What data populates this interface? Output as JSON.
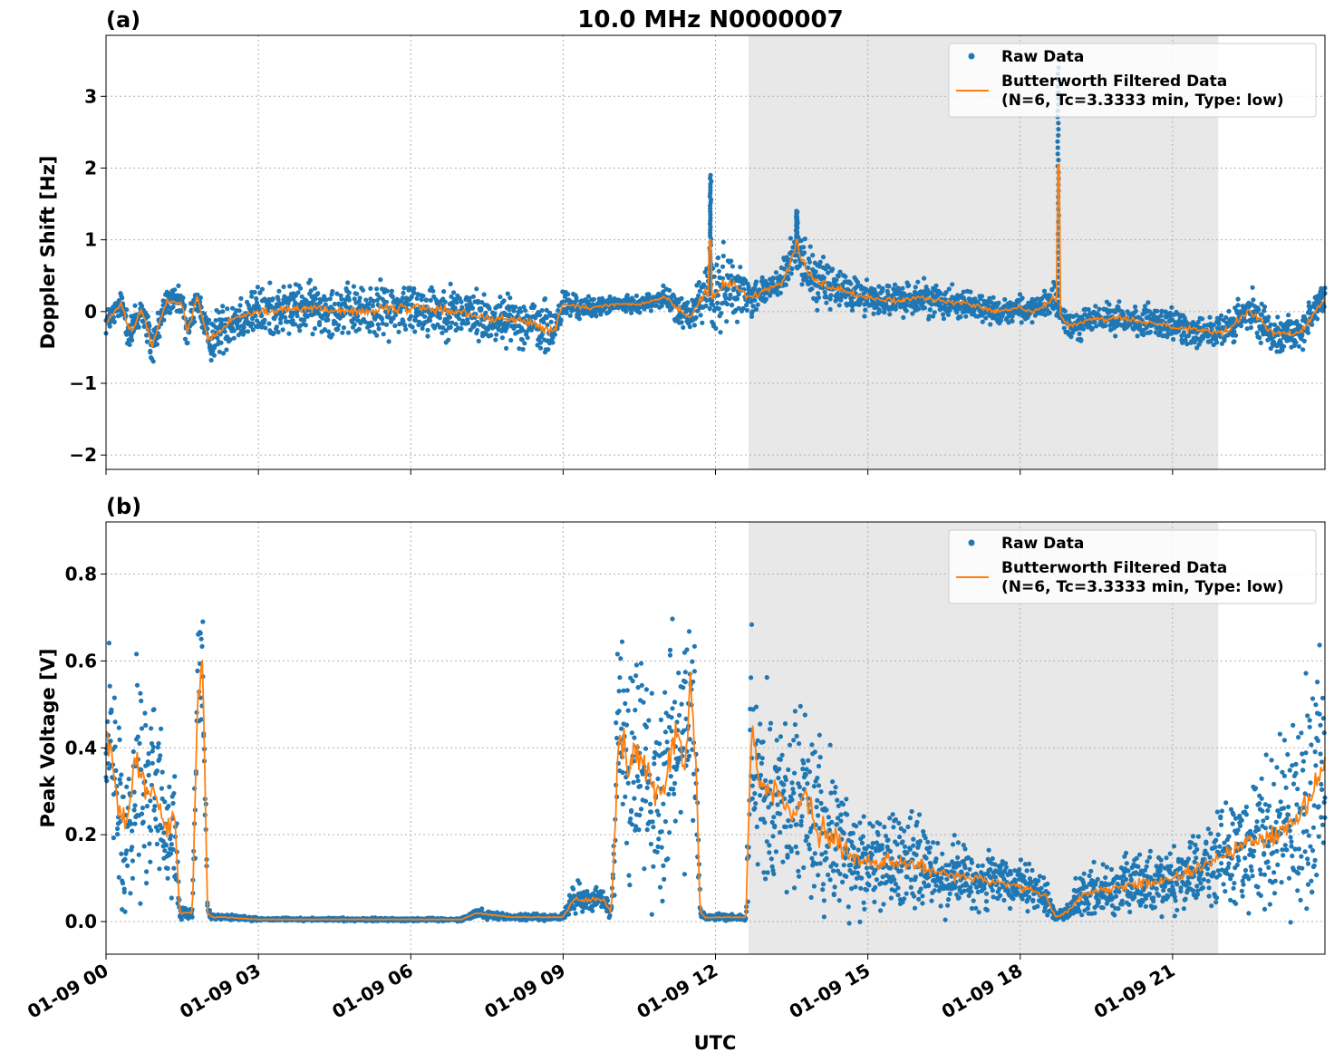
{
  "figure_title": "10.0 MHz N0000007",
  "colors": {
    "raw": "#1f77b4",
    "filtered": "#ff7f0e",
    "shade": "#e8e8e8",
    "grid": "#b0b0b0"
  },
  "chart_data": [
    {
      "type": "scatter",
      "panel_label": "(a)",
      "title": "10.0 MHz N0000007",
      "xlabel": "",
      "ylabel": "Doppler Shift [Hz]",
      "xlim_hours": [
        0,
        24
      ],
      "ylim": [
        -2.2,
        3.85
      ],
      "yticks": [
        -2,
        -1,
        0,
        1,
        2,
        3
      ],
      "ytick_labels": [
        "−2",
        "−1",
        "0",
        "1",
        "2",
        "3"
      ],
      "grid": true,
      "legend_placement": "top-right",
      "legend": [
        "Raw Data",
        "Butterworth Filtered Data",
        "(N=6, Tc=3.3333 min, Type: low)"
      ],
      "shaded_interval_hours": [
        12.65,
        21.9
      ],
      "series": [
        {
          "name": "Raw Data",
          "style": "dots",
          "x": [
            0,
            0.3,
            0.5,
            0.7,
            0.9,
            1.2,
            1.5,
            1.6,
            1.8,
            2,
            2.2,
            2.5,
            3,
            4,
            5,
            6,
            7,
            7.5,
            8,
            8.5,
            8.8,
            9,
            9.5,
            10,
            10.5,
            11,
            11.5,
            11.8,
            12,
            12.2,
            12.5,
            12.7,
            13,
            13.3,
            13.6,
            13.8,
            14,
            14.5,
            15,
            15.5,
            16,
            17,
            17.5,
            18,
            18.3,
            18.5,
            18.7,
            18.8,
            19,
            19.5,
            20,
            21,
            22,
            22.5,
            23,
            23.5,
            24
          ],
          "y_center": [
            -0.15,
            0.1,
            -0.3,
            0.05,
            -0.5,
            0.15,
            0.1,
            -0.3,
            0.2,
            -0.4,
            -0.3,
            -0.1,
            0,
            0.05,
            0,
            0.05,
            0,
            -0.1,
            -0.1,
            -0.2,
            -0.3,
            0.1,
            0.05,
            0.1,
            0.1,
            0.2,
            -0.1,
            0.3,
            0.2,
            0.4,
            0.3,
            0.2,
            0.3,
            0.4,
            0.9,
            0.6,
            0.4,
            0.3,
            0.2,
            0.15,
            0.2,
            0.1,
            0,
            0.05,
            0,
            0.1,
            0.2,
            -0.1,
            -0.2,
            -0.1,
            -0.1,
            -0.2,
            -0.3,
            0,
            -0.3,
            -0.3,
            0.2
          ],
          "y_spread": [
            0.25,
            0.25,
            0.5,
            0.3,
            0.5,
            0.25,
            0.3,
            0.5,
            0.25,
            0.4,
            0.5,
            0.5,
            0.5,
            0.5,
            0.5,
            0.55,
            0.5,
            0.5,
            0.45,
            0.5,
            0.6,
            0.3,
            0.2,
            0.15,
            0.15,
            0.2,
            0.4,
            0.6,
            0.9,
            0.7,
            0.5,
            0.35,
            0.3,
            0.4,
            0.45,
            0.5,
            0.5,
            0.4,
            0.35,
            0.3,
            0.35,
            0.3,
            0.25,
            0.25,
            0.25,
            0.25,
            0.35,
            0.3,
            0.3,
            0.3,
            0.3,
            0.35,
            0.35,
            0.4,
            0.35,
            0.35,
            0.3
          ]
        },
        {
          "name": "Butterworth Filtered Data",
          "style": "line",
          "x": [
            0,
            0.3,
            0.5,
            0.7,
            0.9,
            1.2,
            1.5,
            1.6,
            1.8,
            2,
            2.2,
            2.5,
            3,
            4,
            5,
            6,
            7,
            7.5,
            8,
            8.5,
            8.8,
            9,
            9.5,
            10,
            10.5,
            11,
            11.5,
            11.8,
            12,
            12.2,
            12.5,
            12.7,
            13,
            13.3,
            13.6,
            13.8,
            14,
            14.5,
            15,
            15.5,
            16,
            17,
            17.5,
            18,
            18.3,
            18.5,
            18.7,
            18.8,
            19,
            19.5,
            20,
            21,
            22,
            22.5,
            23,
            23.5,
            24
          ],
          "y": [
            -0.15,
            0.1,
            -0.3,
            0.05,
            -0.5,
            0.15,
            0.1,
            -0.3,
            0.2,
            -0.4,
            -0.3,
            -0.1,
            0,
            0.05,
            0,
            0.05,
            0,
            -0.1,
            -0.1,
            -0.2,
            -0.3,
            0.1,
            0.05,
            0.1,
            0.1,
            0.2,
            -0.1,
            0.3,
            0.2,
            0.4,
            0.3,
            0.2,
            0.3,
            0.4,
            0.9,
            0.6,
            0.4,
            0.3,
            0.2,
            0.15,
            0.2,
            0.1,
            0,
            0.05,
            0,
            0.1,
            0.2,
            -0.1,
            -0.2,
            -0.1,
            -0.1,
            -0.2,
            -0.3,
            0,
            -0.3,
            -0.3,
            0.2
          ]
        }
      ],
      "spikes": [
        {
          "x": 18.75,
          "raw_max": 3.4,
          "filtered_max": 2.05
        },
        {
          "x": 11.9,
          "raw_max": 1.9,
          "filtered_max": 1.0
        },
        {
          "x": 13.6,
          "raw_max": 1.4,
          "filtered_max": 1.0
        }
      ]
    },
    {
      "type": "scatter",
      "panel_label": "(b)",
      "title": "",
      "xlabel": "UTC",
      "ylabel": "Peak Voltage [V]",
      "xlim_hours": [
        0,
        24
      ],
      "ylim": [
        -0.075,
        0.92
      ],
      "yticks": [
        0.0,
        0.2,
        0.4,
        0.6,
        0.8
      ],
      "ytick_labels": [
        "0.0",
        "0.2",
        "0.4",
        "0.6",
        "0.8"
      ],
      "xticks_hours": [
        0,
        3,
        6,
        9,
        12,
        15,
        18,
        21
      ],
      "xtick_labels": [
        "01-09 00",
        "01-09 03",
        "01-09 06",
        "01-09 09",
        "01-09 12",
        "01-09 15",
        "01-09 18",
        "01-09 21"
      ],
      "grid": true,
      "legend_placement": "top-right",
      "legend": [
        "Raw Data",
        "Butterworth Filtered Data",
        "(N=6, Tc=3.3333 min, Type: low)"
      ],
      "shaded_interval_hours": [
        12.65,
        21.9
      ],
      "series": [
        {
          "name": "Raw Data",
          "style": "dots",
          "x": [
            0,
            0.2,
            0.4,
            0.6,
            0.8,
            1,
            1.2,
            1.35,
            1.45,
            1.6,
            1.7,
            1.8,
            1.9,
            2,
            2.1,
            2.3,
            3,
            5,
            7,
            7.3,
            7.6,
            8,
            8.5,
            9,
            9.2,
            9.5,
            9.8,
            9.95,
            10.1,
            10.3,
            10.5,
            10.8,
            11,
            11.2,
            11.4,
            11.5,
            11.6,
            11.7,
            11.8,
            12,
            12.4,
            12.6,
            12.7,
            12.9,
            13.2,
            13.5,
            13.8,
            14,
            14.3,
            14.6,
            15,
            15.5,
            16,
            16.5,
            17,
            17.5,
            18,
            18.5,
            18.7,
            18.9,
            19.2,
            19.5,
            20,
            20.5,
            21,
            21.5,
            22,
            22.5,
            23,
            23.5,
            24
          ],
          "y_center": [
            0.45,
            0.3,
            0.2,
            0.4,
            0.3,
            0.3,
            0.2,
            0.25,
            0.02,
            0.02,
            0.02,
            0.5,
            0.6,
            0.02,
            0.01,
            0.01,
            0.005,
            0.005,
            0.005,
            0.02,
            0.015,
            0.01,
            0.01,
            0.01,
            0.05,
            0.05,
            0.05,
            0.02,
            0.45,
            0.35,
            0.4,
            0.3,
            0.3,
            0.45,
            0.35,
            0.55,
            0.4,
            0.02,
            0.01,
            0.01,
            0.01,
            0.01,
            0.45,
            0.3,
            0.3,
            0.25,
            0.3,
            0.2,
            0.2,
            0.15,
            0.14,
            0.14,
            0.13,
            0.11,
            0.1,
            0.09,
            0.08,
            0.06,
            0.01,
            0.02,
            0.06,
            0.07,
            0.08,
            0.09,
            0.1,
            0.12,
            0.15,
            0.18,
            0.2,
            0.25,
            0.35
          ],
          "y_spread": [
            0.35,
            0.3,
            0.3,
            0.4,
            0.35,
            0.3,
            0.25,
            0.2,
            0.02,
            0.02,
            0.02,
            0.3,
            0.25,
            0.02,
            0.01,
            0.01,
            0.005,
            0.005,
            0.005,
            0.015,
            0.015,
            0.01,
            0.01,
            0.01,
            0.05,
            0.05,
            0.04,
            0.02,
            0.4,
            0.35,
            0.4,
            0.35,
            0.35,
            0.4,
            0.35,
            0.3,
            0.35,
            0.02,
            0.01,
            0.01,
            0.01,
            0.01,
            0.4,
            0.35,
            0.3,
            0.3,
            0.35,
            0.3,
            0.25,
            0.2,
            0.15,
            0.15,
            0.15,
            0.12,
            0.1,
            0.09,
            0.08,
            0.06,
            0.01,
            0.03,
            0.07,
            0.08,
            0.09,
            0.1,
            0.11,
            0.12,
            0.15,
            0.2,
            0.25,
            0.35,
            0.35
          ]
        },
        {
          "name": "Butterworth Filtered Data",
          "style": "line",
          "x": [
            0,
            0.2,
            0.4,
            0.6,
            0.8,
            1,
            1.2,
            1.35,
            1.45,
            1.6,
            1.7,
            1.8,
            1.9,
            2,
            2.1,
            2.3,
            3,
            5,
            7,
            7.3,
            7.6,
            8,
            8.5,
            9,
            9.2,
            9.5,
            9.8,
            9.95,
            10.1,
            10.3,
            10.5,
            10.8,
            11,
            11.2,
            11.4,
            11.5,
            11.6,
            11.7,
            11.8,
            12,
            12.4,
            12.6,
            12.7,
            12.9,
            13.2,
            13.5,
            13.8,
            14,
            14.3,
            14.6,
            15,
            15.5,
            16,
            16.5,
            17,
            17.5,
            18,
            18.5,
            18.7,
            18.9,
            19.2,
            19.5,
            20,
            20.5,
            21,
            21.5,
            22,
            22.5,
            23,
            23.5,
            24
          ],
          "y": [
            0.45,
            0.3,
            0.2,
            0.4,
            0.3,
            0.3,
            0.2,
            0.25,
            0.02,
            0.02,
            0.02,
            0.5,
            0.6,
            0.02,
            0.01,
            0.01,
            0.005,
            0.005,
            0.005,
            0.02,
            0.015,
            0.01,
            0.01,
            0.01,
            0.05,
            0.05,
            0.05,
            0.02,
            0.45,
            0.35,
            0.4,
            0.3,
            0.3,
            0.45,
            0.35,
            0.55,
            0.4,
            0.02,
            0.01,
            0.01,
            0.01,
            0.01,
            0.45,
            0.3,
            0.3,
            0.25,
            0.3,
            0.2,
            0.2,
            0.15,
            0.14,
            0.14,
            0.13,
            0.11,
            0.1,
            0.09,
            0.08,
            0.06,
            0.01,
            0.02,
            0.06,
            0.07,
            0.08,
            0.09,
            0.1,
            0.12,
            0.15,
            0.18,
            0.2,
            0.25,
            0.35
          ]
        }
      ]
    }
  ]
}
